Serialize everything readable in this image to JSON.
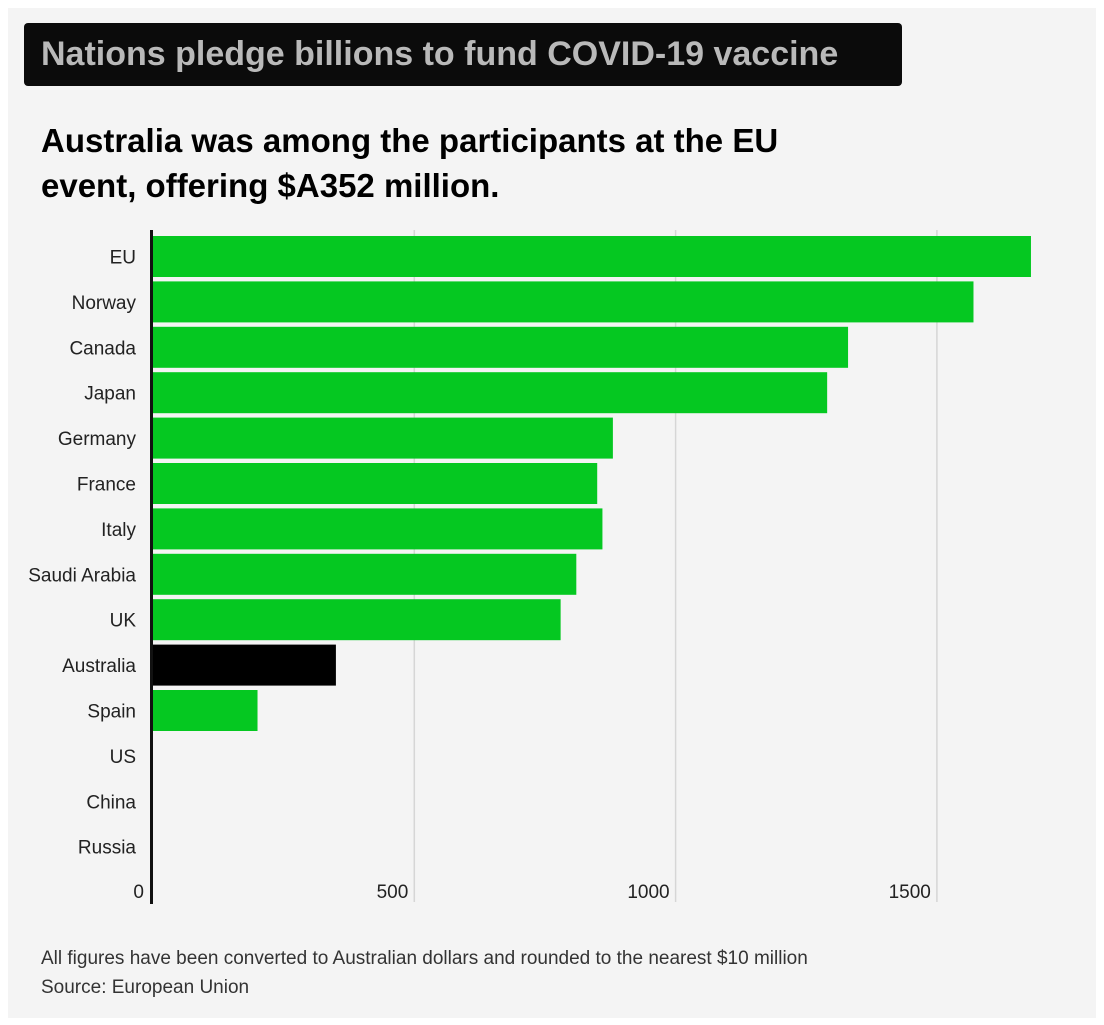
{
  "headline": "Nations pledge billions to fund COVID-19 vaccine",
  "subtitle": "Australia was among the participants at the EU event, offering $A352 million.",
  "footnote": "All figures have been converted to Australian dollars and rounded to the nearest $10 million",
  "source": "Source: European Union",
  "colors": {
    "bar": "#05c821",
    "highlight": "#000000",
    "grid": "#d6d6d6",
    "axis": "#111111",
    "background": "#f4f4f4"
  },
  "chart_data": {
    "type": "bar",
    "orientation": "horizontal",
    "categories": [
      "EU",
      "Norway",
      "Canada",
      "Japan",
      "Germany",
      "France",
      "Italy",
      "Saudi Arabia",
      "UK",
      "Australia",
      "Spain",
      "US",
      "China",
      "Russia"
    ],
    "values": [
      1680,
      1570,
      1330,
      1290,
      880,
      850,
      860,
      810,
      780,
      350,
      200,
      0,
      0,
      0
    ],
    "highlight": "Australia",
    "xticks": [
      0,
      500,
      1000,
      1500
    ],
    "xlim": [
      0,
      1700
    ],
    "grid": true
  }
}
